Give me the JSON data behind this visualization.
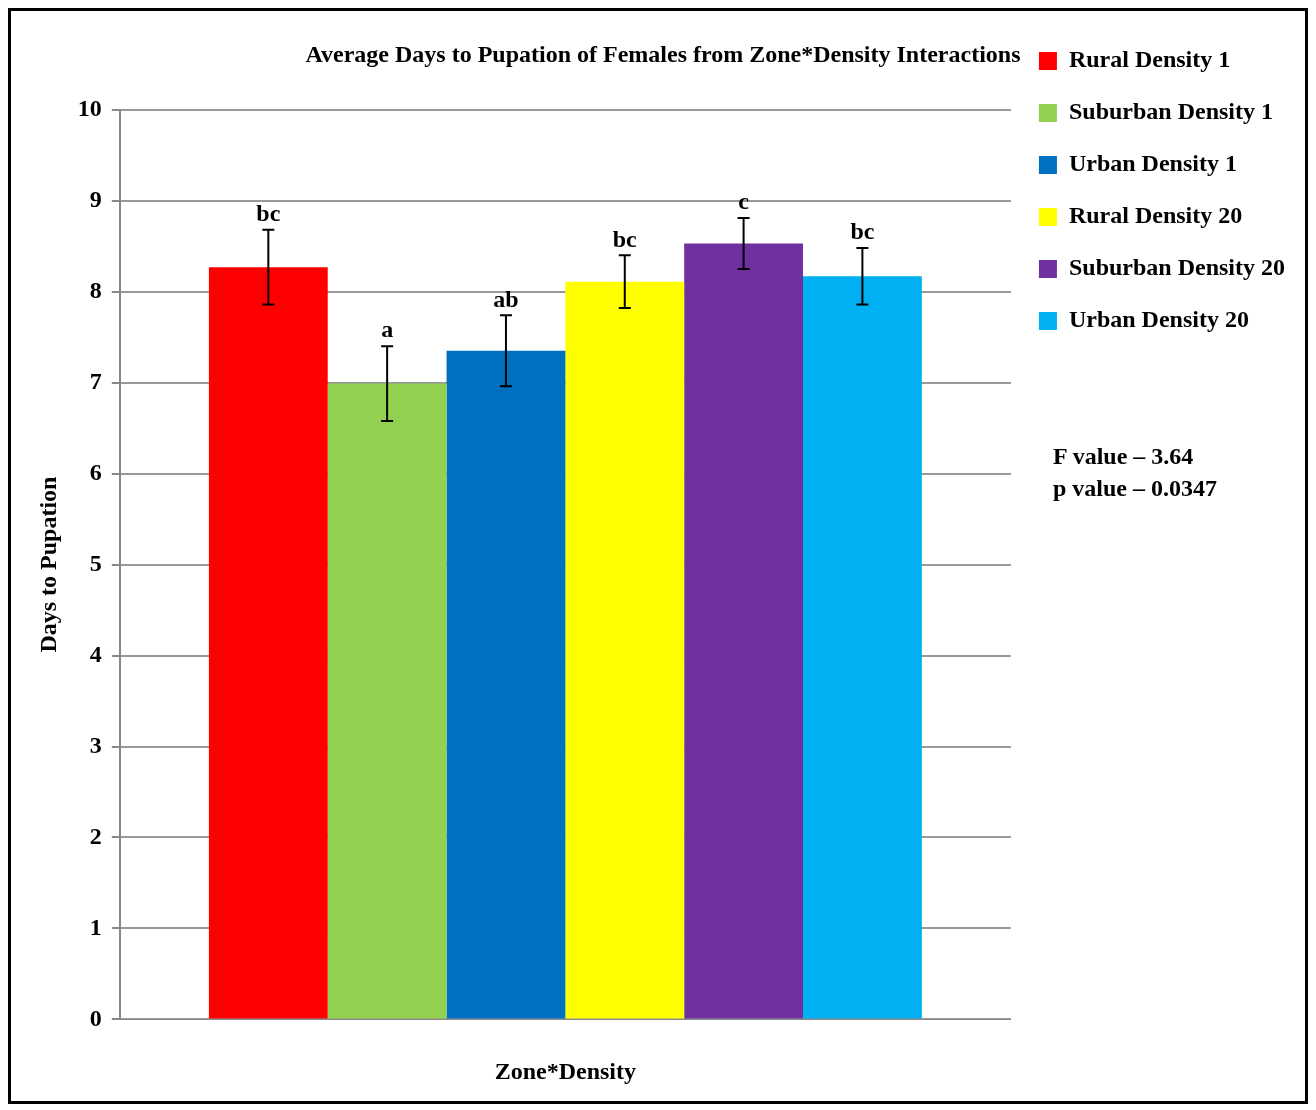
{
  "chart_data": {
    "type": "bar",
    "title": "Average Days to Pupation of Females from Zone*Density Interactions",
    "xlabel": "Zone*Density",
    "ylabel": "Days to Pupation",
    "categories": [
      null
    ],
    "series": [
      {
        "name": "Rural Density 1",
        "color": "#ff0000",
        "values": [
          8.27
        ],
        "errors": [
          0.41
        ],
        "value_labels": [
          "bc"
        ]
      },
      {
        "name": "Suburban Density 1",
        "color": "#92d050",
        "values": [
          6.99
        ],
        "errors": [
          0.41
        ],
        "value_labels": [
          "a"
        ]
      },
      {
        "name": "Urban Density 1",
        "color": "#0070c0",
        "values": [
          7.35
        ],
        "errors": [
          0.39
        ],
        "value_labels": [
          "ab"
        ]
      },
      {
        "name": "Rural Density 20",
        "color": "#ffff00",
        "values": [
          8.11
        ],
        "errors": [
          0.29
        ],
        "value_labels": [
          "bc"
        ]
      },
      {
        "name": "Suburban Density 20",
        "color": "#7030a0",
        "values": [
          8.53
        ],
        "errors": [
          0.28
        ],
        "value_labels": [
          "c"
        ]
      },
      {
        "name": "Urban Density 20",
        "color": "#00b0f0",
        "values": [
          8.17
        ],
        "errors": [
          0.31
        ],
        "value_labels": [
          "bc"
        ]
      }
    ],
    "ylim": [
      0,
      10
    ],
    "yticks": [
      0,
      1,
      2,
      3,
      4,
      5,
      6,
      7,
      8,
      9,
      10
    ],
    "grid": "y",
    "legend": "top right",
    "annotations": [
      "F value – 3.64",
      "p value – 0.0347"
    ]
  }
}
